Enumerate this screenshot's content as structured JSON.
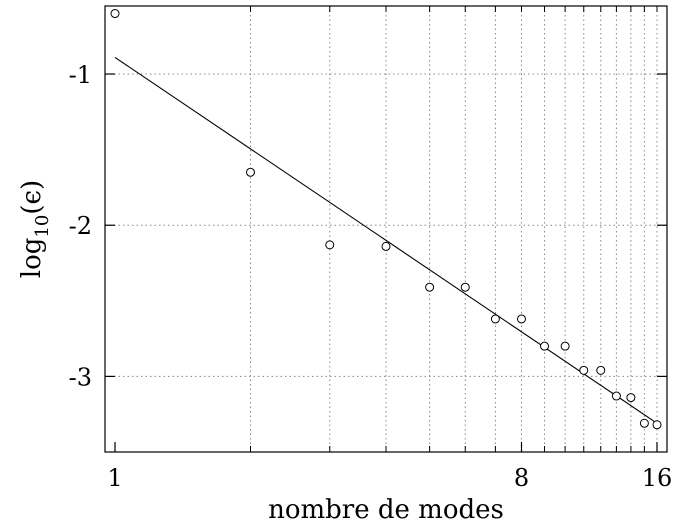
{
  "chart_data": {
    "type": "scatter",
    "xlabel": "nombre de modes",
    "ylabel": {
      "base": "log",
      "subscript": "10",
      "argument": "(ϵ)"
    },
    "x_scale": "log2",
    "xlim": [
      1,
      16
    ],
    "ylim": [
      -3.5,
      -0.55
    ],
    "x_ticks": [
      {
        "value": 1,
        "label": "1"
      },
      {
        "value": 8,
        "label": "8"
      },
      {
        "value": 16,
        "label": "16"
      }
    ],
    "x_grid": [
      2,
      3,
      4,
      5,
      6,
      7,
      8,
      9,
      10,
      11,
      12,
      13,
      14,
      15,
      16
    ],
    "y_ticks": [
      {
        "value": -1,
        "label": "-1"
      },
      {
        "value": -2,
        "label": "-2"
      },
      {
        "value": -3,
        "label": "-3"
      }
    ],
    "grid": true,
    "series": [
      {
        "type": "scatter",
        "marker": "open-circle",
        "x": [
          1,
          2,
          3,
          4,
          5,
          6,
          7,
          8,
          9,
          10,
          11,
          12,
          13,
          14,
          15,
          16
        ],
        "y": [
          -0.6,
          -1.65,
          -2.13,
          -2.14,
          -2.41,
          -2.41,
          -2.62,
          -2.62,
          -2.8,
          -2.8,
          -2.96,
          -2.96,
          -3.13,
          -3.14,
          -3.31,
          -3.32
        ]
      },
      {
        "type": "line",
        "x": [
          1,
          16
        ],
        "y": [
          -0.89,
          -3.31
        ]
      }
    ],
    "colors": {
      "points": "#000000",
      "line": "#000000",
      "grid": "#888888",
      "axes": "#000000"
    }
  }
}
